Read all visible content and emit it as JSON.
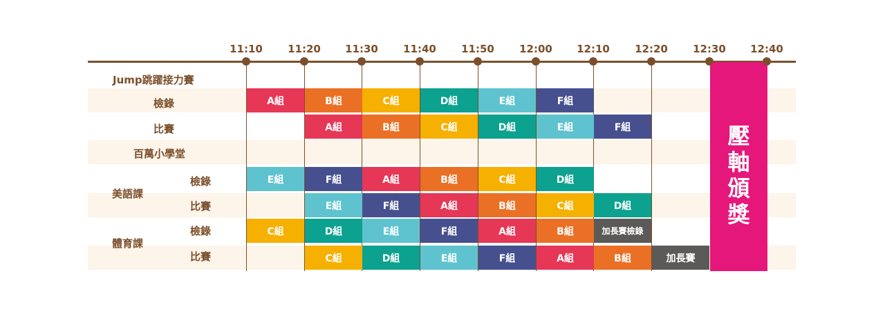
{
  "timeline": {
    "times": [
      "11:10",
      "11:20",
      "11:30",
      "11:40",
      "11:50",
      "12:00",
      "12:10",
      "12:20",
      "12:30",
      "12:40"
    ]
  },
  "labels": {
    "jump": "Jump跳躍接力賽",
    "checkin": "檢錄",
    "match": "比賽",
    "million": "百萬小學堂",
    "english": "美語課",
    "pe": "體育課"
  },
  "colors": {
    "A組": "#e63757",
    "B組": "#ea7025",
    "C組": "#f6b000",
    "D組": "#0da18f",
    "E組": "#5ec3cf",
    "F組": "#47508e",
    "加長賽檢錄": "#5b5a58",
    "加長賽": "#5b5a58"
  },
  "schedule": [
    {
      "row": "jump-checkin",
      "start": 0,
      "cells": [
        "A組",
        "B組",
        "C組",
        "D組",
        "E組",
        "F組"
      ]
    },
    {
      "row": "jump-match",
      "start": 1,
      "cells": [
        "A組",
        "B組",
        "C組",
        "D組",
        "E組",
        "F組"
      ]
    },
    {
      "row": "english-checkin",
      "start": 0,
      "cells": [
        "E組",
        "F組",
        "A組",
        "B組",
        "C組",
        "D組"
      ]
    },
    {
      "row": "english-match",
      "start": 1,
      "cells": [
        "E組",
        "F組",
        "A組",
        "B組",
        "C組",
        "D組"
      ]
    },
    {
      "row": "pe-checkin",
      "start": 0,
      "cells": [
        "C組",
        "D組",
        "E組",
        "F組",
        "A組",
        "B組",
        "加長賽檢錄"
      ]
    },
    {
      "row": "pe-match",
      "start": 1,
      "cells": [
        "C組",
        "D組",
        "E組",
        "F組",
        "A組",
        "B組",
        "加長賽"
      ]
    }
  ],
  "award": {
    "text": "壓軸頒獎",
    "color": "#e5177b"
  }
}
